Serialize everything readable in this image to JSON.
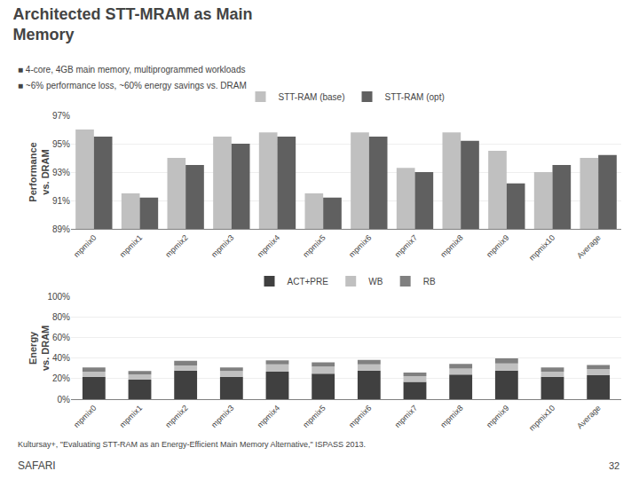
{
  "chart_data": [
    {
      "type": "bar",
      "title": "Architected STT-MRAM as Main\nMemory",
      "annotations": [
        "■ 4-core, 4GB main memory, multiprogrammed workloads",
        "■ ~6% performance loss, ~60% energy savings vs. DRAM",
        "Kultursay+, \"Evaluating STT-RAM as an Energy-Efficient Main Memory Alternative,\" ISPASS 2013.",
        "32",
        "SAFARI"
      ],
      "categories": [
        "mpmix0",
        "mpmix1",
        "mpmix2",
        "mpmix3",
        "mpmix4",
        "mpmix5",
        "mpmix6",
        "mpmix7",
        "mpmix8",
        "mpmix9",
        "mpmix10",
        "Average"
      ],
      "series": [
        {
          "name": "STT-RAM (base)",
          "color": "#C0C0C0",
          "values": [
            96.0,
            91.5,
            94.0,
            95.5,
            95.8,
            91.5,
            95.8,
            93.3,
            95.8,
            94.5,
            93.0,
            94.0
          ]
        },
        {
          "name": "STT-RAM (opt)",
          "color": "#606060",
          "values": [
            95.5,
            91.2,
            93.5,
            95.0,
            95.5,
            91.2,
            95.5,
            93.0,
            95.2,
            92.2,
            93.5,
            94.2
          ]
        }
      ],
      "ylabel": "Performance\nvs. DRAM",
      "ylim": [
        89,
        97
      ],
      "yticks": [
        {
          "value": 89,
          "label": "89%"
        },
        {
          "value": 91,
          "label": "91%"
        },
        {
          "value": 93,
          "label": "93%"
        },
        {
          "value": 95,
          "label": "95%"
        },
        {
          "value": 97,
          "label": "97%"
        }
      ],
      "grid": true,
      "legend": "top"
    },
    {
      "type": "bar",
      "stacked": true,
      "categories": [
        "mpmix0",
        "mpmix1",
        "mpmix2",
        "mpmix3",
        "mpmix4",
        "mpmix5",
        "mpmix6",
        "mpmix7",
        "mpmix8",
        "mpmix9",
        "mpmix10",
        "Average"
      ],
      "series": [
        {
          "name": "ACT+PRE",
          "color": "#404040",
          "values": [
            22.0,
            19.0,
            28.0,
            22.0,
            27.0,
            25.0,
            28.0,
            17.0,
            24.0,
            28.0,
            22.0,
            23.5
          ]
        },
        {
          "name": "WB",
          "color": "#C0C0C0",
          "values": [
            5.0,
            5.0,
            5.0,
            5.5,
            7.0,
            7.0,
            6.0,
            5.5,
            6.0,
            7.0,
            5.0,
            6.0
          ]
        },
        {
          "name": "RB",
          "color": "#808080",
          "values": [
            4.0,
            3.5,
            4.5,
            3.5,
            4.0,
            4.0,
            4.5,
            3.5,
            4.5,
            5.0,
            4.0,
            4.0
          ]
        }
      ],
      "ylabel": "Energy\nvs. DRAM",
      "ylim": [
        0,
        100
      ],
      "yticks": [
        {
          "value": 0,
          "label": "0%"
        },
        {
          "value": 20,
          "label": "20%"
        },
        {
          "value": 40,
          "label": "40%"
        },
        {
          "value": 60,
          "label": "60%"
        },
        {
          "value": 80,
          "label": "80%"
        },
        {
          "value": 100,
          "label": "100%"
        }
      ],
      "grid": true,
      "legend": "top"
    }
  ]
}
